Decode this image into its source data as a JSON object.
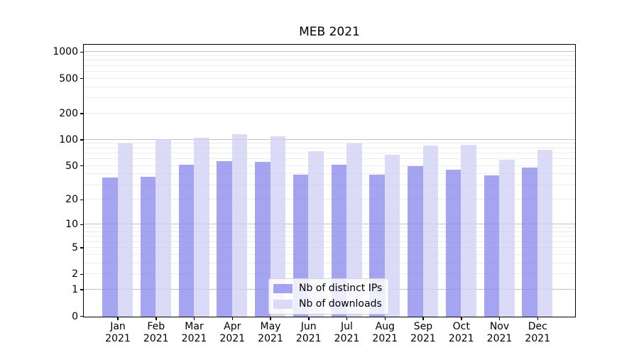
{
  "figure": {
    "background": "#ffffff"
  },
  "chart_data": {
    "type": "bar",
    "title": "MEB 2021",
    "categories": [
      "Jan 2021",
      "Feb 2021",
      "Mar 2021",
      "Apr 2021",
      "May 2021",
      "Jun 2021",
      "Jul 2021",
      "Aug 2021",
      "Sep 2021",
      "Oct 2021",
      "Nov 2021",
      "Dec 2021"
    ],
    "series": [
      {
        "name": "Nb of distinct IPs",
        "color": "#8d8dec",
        "values": [
          37,
          38,
          52,
          57,
          56,
          40,
          52,
          40,
          50,
          46,
          39,
          48
        ]
      },
      {
        "name": "Nb of downloads",
        "color": "#d2d2f5",
        "values": [
          91,
          102,
          107,
          117,
          111,
          75,
          92,
          68,
          87,
          89,
          60,
          78
        ]
      }
    ],
    "bar_opacity": 0.8,
    "xlabel": "",
    "ylabel": "",
    "y_axis": {
      "scale": "log10(value+1)",
      "ticks": [
        0,
        1,
        2,
        5,
        10,
        20,
        50,
        100,
        200,
        500,
        1000
      ],
      "ylim": [
        0,
        1200
      ],
      "minor_gridline_decades": [
        1,
        10,
        100
      ]
    },
    "grid": {
      "which": "both",
      "minor_color": "#ececec",
      "major_color": "#c2c2c2",
      "major_values": [
        1,
        10,
        100,
        1000
      ]
    },
    "legend": {
      "position": "lower center",
      "background": "rgba(255,255,255,0.8)",
      "border_color": "#d5d5d5"
    },
    "spine_color": "#000000"
  }
}
